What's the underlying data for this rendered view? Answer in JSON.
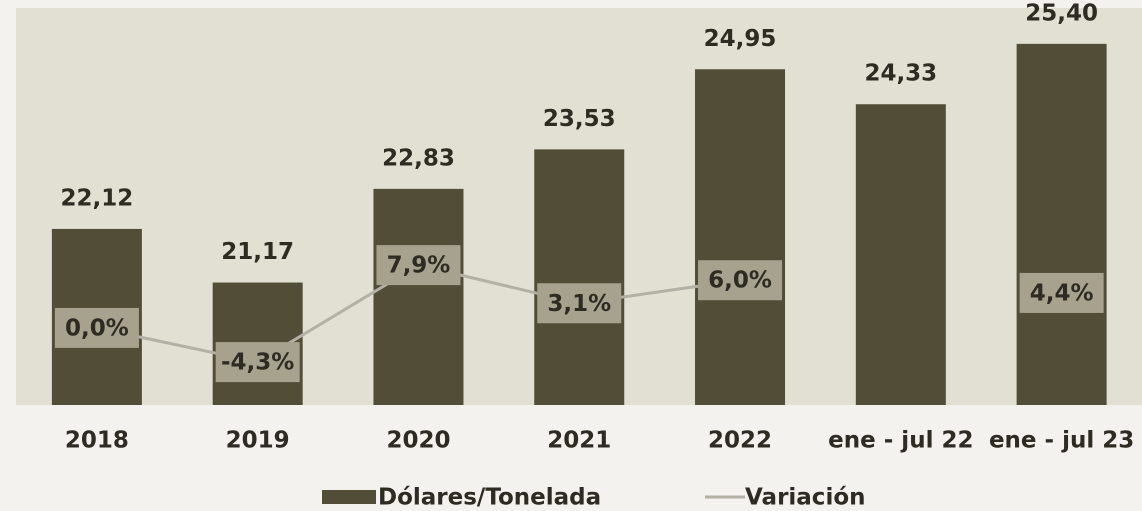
{
  "chart_data": {
    "type": "bar",
    "categories": [
      "2018",
      "2019",
      "2020",
      "2021",
      "2022",
      "ene - jul 22",
      "ene - jul 23"
    ],
    "series": [
      {
        "name": "Dólares/Tonelada",
        "type": "bar",
        "color": "#524d36",
        "values": [
          22.12,
          21.17,
          22.83,
          23.53,
          24.95,
          24.33,
          25.4
        ],
        "value_labels": [
          "22,12",
          "21,17",
          "22,83",
          "23,53",
          "24,95",
          "24,33",
          "25,40"
        ]
      },
      {
        "name": "Variación",
        "type": "line",
        "axis": "y2",
        "color": "#b3b0a6",
        "values": [
          0.0,
          -4.3,
          7.9,
          3.1,
          6.0,
          null,
          4.4
        ],
        "value_labels": [
          "0,0%",
          "-4,3%",
          "7,9%",
          "3,1%",
          "6,0%",
          null,
          "4,4%"
        ]
      }
    ],
    "ylim": [
      19,
      26
    ],
    "y2lim": [
      -9.7,
      40
    ],
    "legend": "bottom"
  }
}
